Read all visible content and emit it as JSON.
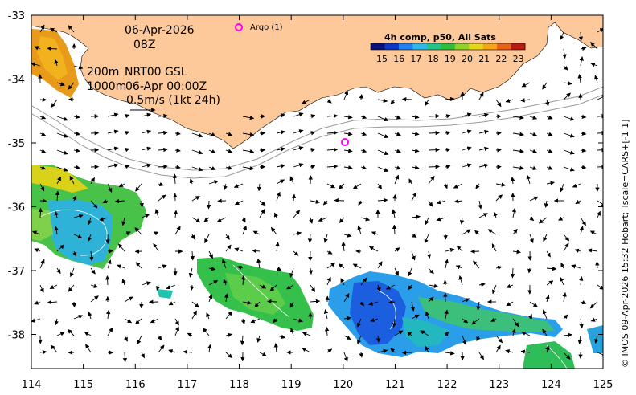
{
  "map": {
    "x_ticks": [
      "114",
      "115",
      "116",
      "117",
      "118",
      "119",
      "120",
      "121",
      "122",
      "123",
      "124",
      "125"
    ],
    "y_ticks": [
      "-33",
      "-34",
      "-35",
      "-36",
      "-37",
      "-38"
    ],
    "land_color": "#fdc99a",
    "frame_color": "#000000"
  },
  "info": {
    "date": "06-Apr-2026",
    "time": "08Z",
    "depth_line1": "200m",
    "product": "NRT00 GSL",
    "depth_line2": "1000m",
    "product_time": "06-Apr 00:00Z",
    "scale_label": "0.5m/s (1kt 24h)"
  },
  "argo": {
    "legend_label": "Argo (1)",
    "color": "#ff00ff",
    "float_lon": 120.1,
    "float_lat": -34.98
  },
  "colorbar": {
    "title": "4h comp, p50, All Sats",
    "ticks": [
      "15",
      "16",
      "17",
      "18",
      "19",
      "20",
      "21",
      "22",
      "23"
    ],
    "colors": [
      "#08117a",
      "#0a37c8",
      "#1e7ff0",
      "#2fb7e6",
      "#22c48a",
      "#2fbd3c",
      "#8fd12a",
      "#e6d617",
      "#f6a516",
      "#e8621a",
      "#b81a10"
    ]
  },
  "credit": "© IMOS 09-Apr-2026 15:32 Hobart; Tscale=CARS+[-1 1]"
}
